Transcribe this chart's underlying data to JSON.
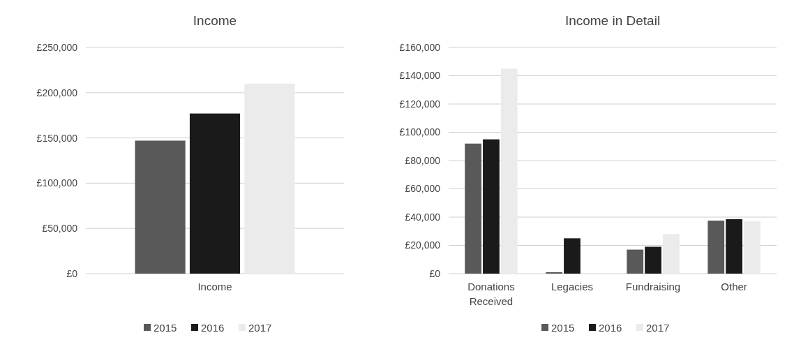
{
  "chart_data": [
    {
      "type": "bar",
      "title": "Income",
      "categories": [
        "Income"
      ],
      "series": [
        {
          "name": "2015",
          "color": "#595959",
          "values": [
            147000
          ]
        },
        {
          "name": "2016",
          "color": "#1a1a1a",
          "values": [
            177000
          ]
        },
        {
          "name": "2017",
          "color": "#ebebeb",
          "values": [
            210000
          ]
        }
      ],
      "ylim": [
        0,
        250000
      ],
      "yticks": [
        {
          "value": 0,
          "label": "£0"
        },
        {
          "value": 50000,
          "label": "£50,000"
        },
        {
          "value": 100000,
          "label": "£100,000"
        },
        {
          "value": 150000,
          "label": "£150,000"
        },
        {
          "value": 200000,
          "label": "£200,000"
        },
        {
          "value": 250000,
          "label": "£250,000"
        }
      ],
      "grid": "y",
      "legend": "bottom"
    },
    {
      "type": "bar",
      "title": "Income in Detail",
      "categories": [
        "Donations Received",
        "Legacies",
        "Fundraising",
        "Other"
      ],
      "series": [
        {
          "name": "2015",
          "color": "#595959",
          "values": [
            92000,
            1000,
            17000,
            37500
          ]
        },
        {
          "name": "2016",
          "color": "#1a1a1a",
          "values": [
            95000,
            25000,
            19000,
            38500
          ]
        },
        {
          "name": "2017",
          "color": "#ebebeb",
          "values": [
            145000,
            0,
            28000,
            37000
          ]
        }
      ],
      "ylim": [
        0,
        160000
      ],
      "yticks": [
        {
          "value": 0,
          "label": "£0"
        },
        {
          "value": 20000,
          "label": "£20,000"
        },
        {
          "value": 40000,
          "label": "£40,000"
        },
        {
          "value": 60000,
          "label": "£60,000"
        },
        {
          "value": 80000,
          "label": "£80,000"
        },
        {
          "value": 100000,
          "label": "£100,000"
        },
        {
          "value": 120000,
          "label": "£120,000"
        },
        {
          "value": 140000,
          "label": "£140,000"
        },
        {
          "value": 160000,
          "label": "£160,000"
        }
      ],
      "grid": "y",
      "legend": "bottom"
    }
  ]
}
